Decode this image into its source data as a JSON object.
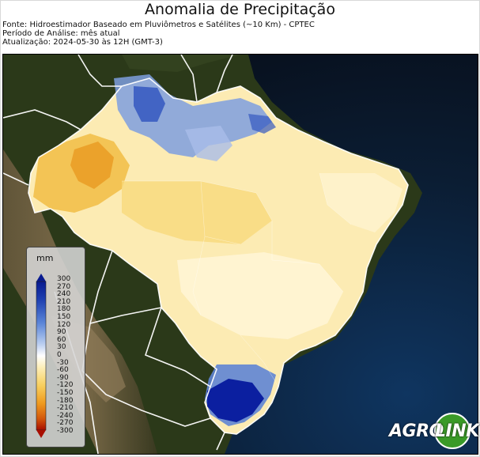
{
  "title": "Anomalia de Precipitação",
  "meta": {
    "source": "Fonte: Hidroestimador Baseado em Pluviômetros e Satélites (~10 Km) - CPTEC",
    "period": "Período de Análise: mês atual",
    "update": "Atualização: 2024-05-30 às 12H (GMT-3)"
  },
  "legend": {
    "unit": "mm",
    "ticks": [
      "300",
      "270",
      "240",
      "210",
      "180",
      "150",
      "120",
      "90",
      "60",
      "30",
      "0",
      "-30",
      "-60",
      "-90",
      "-120",
      "-150",
      "-180",
      "-210",
      "-240",
      "-270",
      "-300"
    ],
    "colors": {
      "max": "#0a1a9a",
      "high": "#3a62c8",
      "mid_wet": "#b9c8ea",
      "neutral": "#ffffff",
      "mid_dry": "#fbe3a0",
      "low": "#f0a020",
      "min": "#c01000"
    }
  },
  "logo": {
    "text_a": "AGRO",
    "text_b": "LINK",
    "accent": "#3a9a28"
  },
  "map": {
    "ocean_color": "#0b1d33",
    "land_color": "#2d3a1a",
    "border_color": "#ffffff"
  }
}
